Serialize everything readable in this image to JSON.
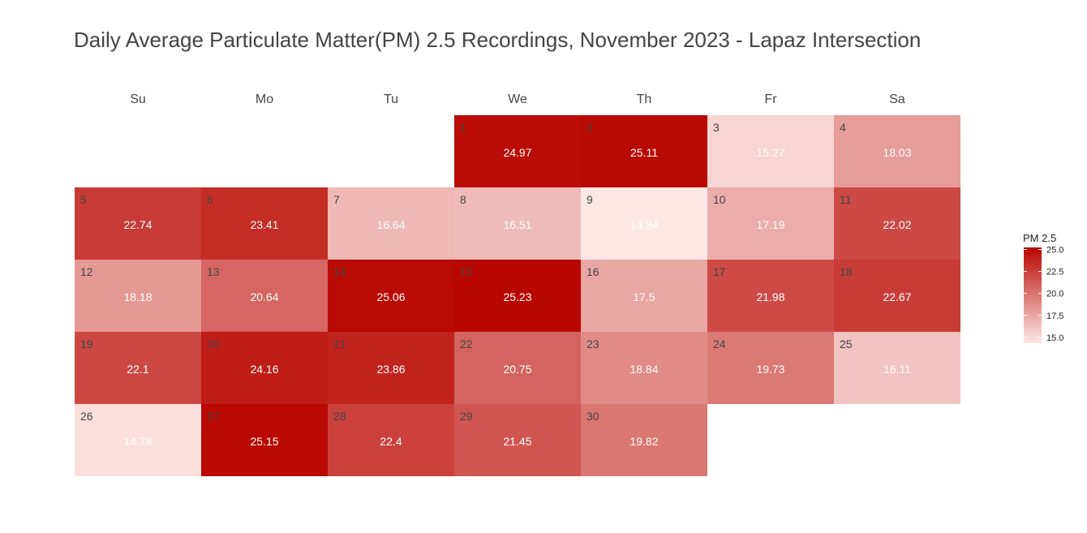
{
  "chart_data": {
    "type": "heatmap",
    "title": "Daily Average Particulate Matter(PM) 2.5 Recordings, November 2023 - Lapaz Intersection",
    "weekdays": [
      "Su",
      "Mo",
      "Tu",
      "We",
      "Th",
      "Fr",
      "Sa"
    ],
    "first_weekday_index": 3,
    "days": [
      {
        "day": "1",
        "value": 24.97
      },
      {
        "day": "2",
        "value": 25.11
      },
      {
        "day": "3",
        "value": 15.27
      },
      {
        "day": "4",
        "value": 18.03
      },
      {
        "day": "5",
        "value": 22.74
      },
      {
        "day": "6",
        "value": 23.41
      },
      {
        "day": "7",
        "value": 16.64
      },
      {
        "day": "8",
        "value": 16.51
      },
      {
        "day": "9",
        "value": 14.34
      },
      {
        "day": "10",
        "value": 17.19
      },
      {
        "day": "11",
        "value": 22.02
      },
      {
        "day": "12",
        "value": 18.18
      },
      {
        "day": "13",
        "value": 20.64
      },
      {
        "day": "14",
        "value": 25.06
      },
      {
        "day": "15",
        "value": 25.23
      },
      {
        "day": "16",
        "value": 17.5
      },
      {
        "day": "17",
        "value": 21.98
      },
      {
        "day": "18",
        "value": 22.67
      },
      {
        "day": "19",
        "value": 22.1
      },
      {
        "day": "20",
        "value": 24.16
      },
      {
        "day": "21",
        "value": 23.86
      },
      {
        "day": "22",
        "value": 20.75
      },
      {
        "day": "23",
        "value": 18.84
      },
      {
        "day": "24",
        "value": 19.73
      },
      {
        "day": "25",
        "value": 16.11
      },
      {
        "day": "26",
        "value": 14.78
      },
      {
        "day": "27",
        "value": 25.15
      },
      {
        "day": "28",
        "value": 22.4
      },
      {
        "day": "29",
        "value": 21.45
      },
      {
        "day": "30",
        "value": 19.82
      }
    ],
    "legend": {
      "title": "PM 2.5",
      "ticks": [
        "25.0",
        "22.5",
        "20.0",
        "17.5",
        "15.0"
      ],
      "tick_values": [
        25.0,
        22.5,
        20.0,
        17.5,
        15.0
      ],
      "position": "right"
    },
    "color_scale": {
      "low": "#fde8e6",
      "high": "#b80700",
      "domain": [
        14.34,
        25.23
      ]
    },
    "grid": false
  }
}
